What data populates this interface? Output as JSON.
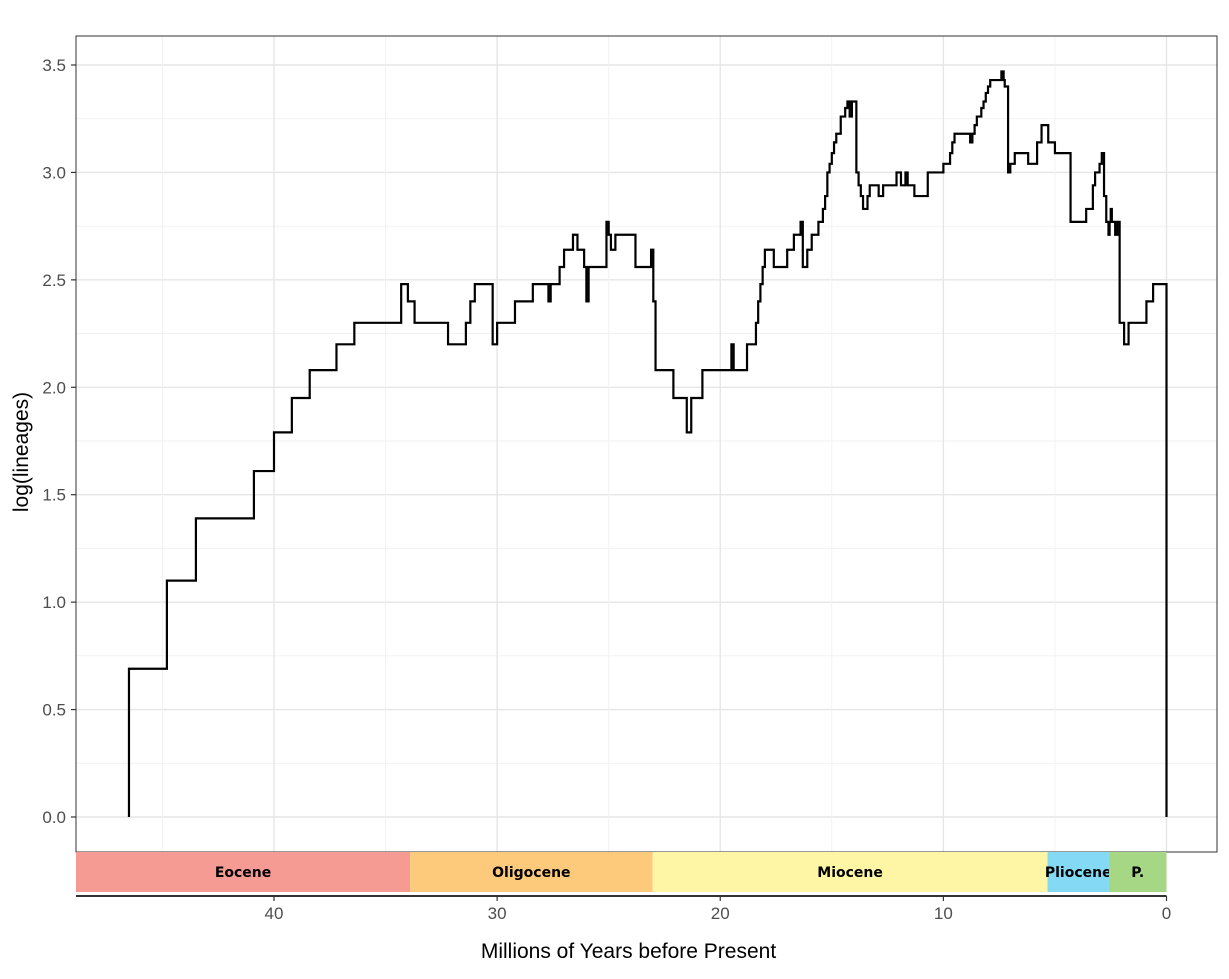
{
  "chart_data": {
    "type": "line",
    "xlabel": "Millions of Years before Present",
    "ylabel": "log(lineages)",
    "xlim": [
      49,
      0
    ],
    "ylim": [
      -0.16,
      3.6
    ],
    "x_ticks": [
      40,
      30,
      20,
      10,
      0
    ],
    "x_tick_labels": [
      "40",
      "30",
      "20",
      "10",
      "0"
    ],
    "y_ticks": [
      0.0,
      0.5,
      1.0,
      1.5,
      2.0,
      2.5,
      3.0,
      3.5
    ],
    "y_tick_labels": [
      "0.0",
      "0.5",
      "1.0",
      "1.5",
      "2.0",
      "2.5",
      "3.0",
      "3.5"
    ],
    "grid": true,
    "line_color": "#000000",
    "series": [
      {
        "style": "step",
        "x": [
          46.5,
          46.5,
          44.8,
          43.5,
          40.9,
          40.0,
          39.2,
          38.4,
          37.2,
          36.4,
          34.3,
          34.0,
          33.7,
          33.3,
          32.2,
          31.4,
          31.2,
          31.0,
          30.2,
          30.0,
          29.9,
          29.2,
          28.4,
          27.7,
          27.6,
          27.2,
          27.0,
          26.6,
          26.4,
          26.1,
          26.0,
          25.9,
          25.1,
          25.0,
          24.9,
          24.7,
          23.8,
          23.6,
          23.5,
          23.1,
          23.0,
          22.9,
          22.1,
          21.5,
          21.3,
          21.0,
          20.8,
          19.5,
          19.4,
          19.2,
          18.8,
          18.4,
          18.3,
          18.2,
          18.1,
          18.0,
          17.9,
          17.7,
          17.6,
          17.0,
          16.7,
          16.5,
          16.4,
          16.3,
          16.1,
          15.9,
          15.6,
          15.4,
          15.3,
          15.2,
          15.1,
          15.0,
          14.9,
          14.8,
          14.6,
          14.4,
          14.3,
          14.2,
          14.1,
          13.9,
          13.8,
          13.7,
          13.6,
          13.5,
          13.4,
          13.3,
          12.9,
          12.7,
          12.1,
          11.9,
          11.7,
          11.6,
          11.3,
          10.7,
          10.0,
          9.7,
          9.6,
          9.5,
          9.3,
          8.8,
          8.7,
          8.6,
          8.5,
          8.3,
          8.2,
          8.1,
          8.0,
          7.9,
          7.8,
          7.7,
          7.5,
          7.4,
          7.3,
          7.25,
          7.1,
          7.0,
          6.8,
          6.2,
          5.8,
          5.7,
          5.6,
          5.3,
          5.0,
          4.3,
          3.6,
          3.3,
          3.2,
          3.0,
          2.9,
          2.8,
          2.7,
          2.6,
          2.55,
          2.5,
          2.45,
          2.35,
          2.3,
          2.2,
          2.1,
          1.9,
          1.7,
          1.5,
          1.3,
          0.9,
          0.6,
          0.0,
          0.0
        ],
        "y": [
          0.0,
          0.69,
          1.1,
          1.39,
          1.61,
          1.79,
          1.95,
          2.08,
          2.2,
          2.3,
          2.48,
          2.4,
          2.3,
          2.3,
          2.2,
          2.3,
          2.4,
          2.48,
          2.2,
          2.3,
          2.3,
          2.4,
          2.48,
          2.4,
          2.48,
          2.56,
          2.64,
          2.71,
          2.64,
          2.56,
          2.4,
          2.56,
          2.77,
          2.71,
          2.64,
          2.71,
          2.56,
          2.56,
          2.56,
          2.64,
          2.4,
          2.08,
          1.95,
          1.79,
          1.95,
          1.95,
          2.08,
          2.2,
          2.08,
          2.08,
          2.2,
          2.3,
          2.4,
          2.48,
          2.56,
          2.64,
          2.64,
          2.64,
          2.56,
          2.64,
          2.71,
          2.71,
          2.77,
          2.56,
          2.64,
          2.71,
          2.77,
          2.83,
          2.89,
          3.0,
          3.04,
          3.09,
          3.14,
          3.18,
          3.26,
          3.3,
          3.33,
          3.26,
          3.33,
          3.0,
          2.94,
          2.89,
          2.83,
          2.83,
          2.89,
          2.94,
          2.89,
          2.94,
          3.0,
          2.94,
          3.0,
          2.94,
          2.89,
          3.0,
          3.04,
          3.09,
          3.14,
          3.18,
          3.18,
          3.14,
          3.18,
          3.22,
          3.26,
          3.3,
          3.33,
          3.37,
          3.4,
          3.43,
          3.43,
          3.43,
          3.43,
          3.47,
          3.43,
          3.4,
          3.0,
          3.04,
          3.09,
          3.04,
          3.14,
          3.14,
          3.22,
          3.14,
          3.09,
          2.77,
          2.83,
          2.94,
          3.0,
          3.04,
          3.09,
          2.89,
          2.77,
          2.71,
          2.77,
          2.83,
          2.77,
          2.77,
          2.71,
          2.77,
          2.3,
          2.2,
          2.3,
          2.3,
          2.3,
          2.4,
          2.48,
          2.48,
          0.0
        ]
      }
    ],
    "epochs": [
      {
        "label": "Eocene",
        "start": 56.0,
        "end": 33.9,
        "color": "#f59b94"
      },
      {
        "label": "Oligocene",
        "start": 33.9,
        "end": 23.03,
        "color": "#fdc97a"
      },
      {
        "label": "Miocene",
        "start": 23.03,
        "end": 5.333,
        "color": "#fef5a5"
      },
      {
        "label": "Pliocene",
        "start": 5.333,
        "end": 2.58,
        "color": "#84daf5"
      },
      {
        "label": "P.",
        "start": 2.58,
        "end": 0.0,
        "color": "#a6d785"
      }
    ]
  }
}
